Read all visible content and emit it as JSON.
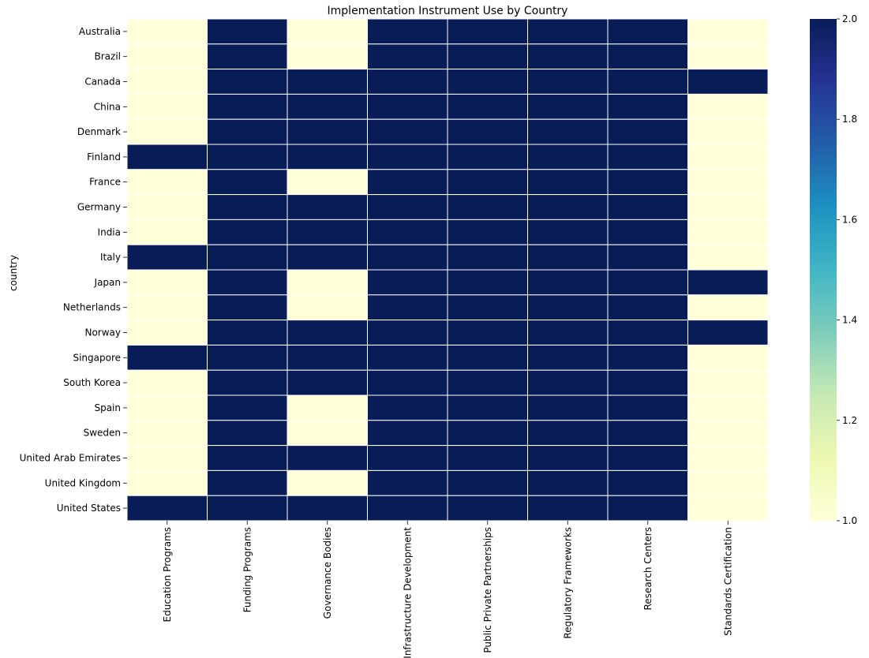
{
  "chart_data": {
    "type": "heatmap",
    "title": "Implementation Instrument Use by Country",
    "xlabel": "",
    "ylabel": "country",
    "rows": [
      "Australia",
      "Brazil",
      "Canada",
      "China",
      "Denmark",
      "Finland",
      "France",
      "Germany",
      "India",
      "Italy",
      "Japan",
      "Netherlands",
      "Norway",
      "Singapore",
      "South Korea",
      "Spain",
      "Sweden",
      "United Arab Emirates",
      "United Kingdom",
      "United States"
    ],
    "columns": [
      "Education Programs",
      "Funding Programs",
      "Governance Bodies",
      "Infrastructure Development",
      "Public Private Partnerships",
      "Regulatory Frameworks",
      "Research Centers",
      "Standards Certification"
    ],
    "values": [
      [
        1,
        2,
        1,
        2,
        2,
        2,
        2,
        1
      ],
      [
        1,
        2,
        1,
        2,
        2,
        2,
        2,
        1
      ],
      [
        1,
        2,
        2,
        2,
        2,
        2,
        2,
        2
      ],
      [
        1,
        2,
        2,
        2,
        2,
        2,
        2,
        1
      ],
      [
        1,
        2,
        2,
        2,
        2,
        2,
        2,
        1
      ],
      [
        2,
        2,
        2,
        2,
        2,
        2,
        2,
        1
      ],
      [
        1,
        2,
        1,
        2,
        2,
        2,
        2,
        1
      ],
      [
        1,
        2,
        2,
        2,
        2,
        2,
        2,
        1
      ],
      [
        1,
        2,
        2,
        2,
        2,
        2,
        2,
        1
      ],
      [
        2,
        2,
        2,
        2,
        2,
        2,
        2,
        1
      ],
      [
        1,
        2,
        1,
        2,
        2,
        2,
        2,
        2
      ],
      [
        1,
        2,
        1,
        2,
        2,
        2,
        2,
        1
      ],
      [
        1,
        2,
        2,
        2,
        2,
        2,
        2,
        2
      ],
      [
        2,
        2,
        2,
        2,
        2,
        2,
        2,
        1
      ],
      [
        1,
        2,
        2,
        2,
        2,
        2,
        2,
        1
      ],
      [
        1,
        2,
        1,
        2,
        2,
        2,
        2,
        1
      ],
      [
        1,
        2,
        1,
        2,
        2,
        2,
        2,
        1
      ],
      [
        1,
        2,
        2,
        2,
        2,
        2,
        2,
        1
      ],
      [
        1,
        2,
        1,
        2,
        2,
        2,
        2,
        1
      ],
      [
        2,
        2,
        2,
        2,
        2,
        2,
        2,
        1
      ]
    ],
    "colorbar": {
      "range": [
        1.0,
        2.0
      ],
      "ticks": [
        "1.0",
        "1.2",
        "1.4",
        "1.6",
        "1.8",
        "2.0"
      ],
      "colormap": "YlGnBu",
      "colors": [
        "#ffffd9",
        "#edf8b1",
        "#c7e9b4",
        "#7fcdbb",
        "#41b6c4",
        "#1d91c0",
        "#225ea8",
        "#253494",
        "#081d58"
      ]
    },
    "grid": true
  }
}
